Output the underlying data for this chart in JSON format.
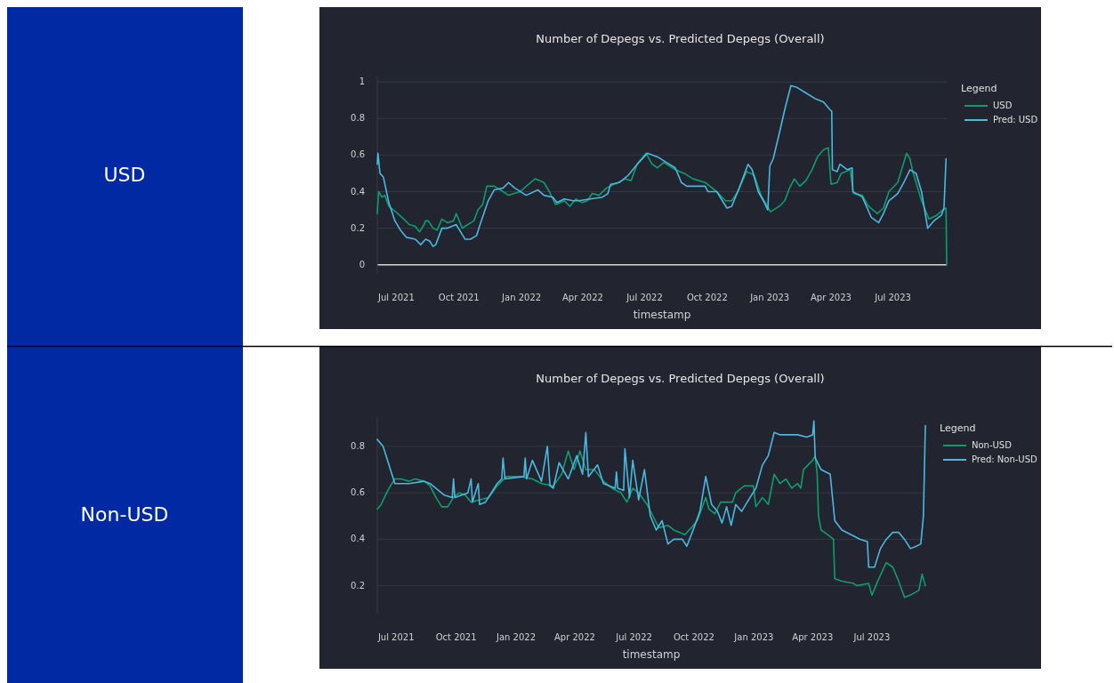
{
  "chart_data": [
    {
      "type": "line",
      "title": "Number of Depegs vs. Predicted Depegs (Overall)",
      "ylabel": "USD",
      "xlabel": "timestamp",
      "legend_title": "Legend",
      "legend": "top right",
      "grid": "y",
      "xlim": [
        "2021-06-03",
        "2023-09-18"
      ],
      "ylim": [
        -0.05,
        1.03
      ],
      "xticks": [
        {
          "value": "2021-07-01",
          "label": "Jul 2021"
        },
        {
          "value": "2021-10-01",
          "label": "Oct 2021"
        },
        {
          "value": "2022-01-01",
          "label": "Jan 2022"
        },
        {
          "value": "2022-04-01",
          "label": "Apr 2022"
        },
        {
          "value": "2022-07-01",
          "label": "Jul 2022"
        },
        {
          "value": "2022-10-01",
          "label": "Oct 2022"
        },
        {
          "value": "2023-01-01",
          "label": "Jan 2023"
        },
        {
          "value": "2023-04-01",
          "label": "Apr 2023"
        },
        {
          "value": "2023-07-01",
          "label": "Jul 2023"
        }
      ],
      "yticks": [
        0,
        0.2,
        0.4,
        0.6,
        0.8,
        1
      ],
      "series": [
        {
          "name": "USD",
          "color": "#0f9d6e",
          "x": [
            "2021-06-03",
            "2021-06-05",
            "2021-06-10",
            "2021-06-14",
            "2021-06-20",
            "2021-07-03",
            "2021-07-12",
            "2021-07-20",
            "2021-07-29",
            "2021-08-04",
            "2021-08-11",
            "2021-08-13",
            "2021-08-17",
            "2021-08-24",
            "2021-08-30",
            "2021-09-06",
            "2021-09-14",
            "2021-09-23",
            "2021-09-27",
            "2021-10-06",
            "2021-10-14",
            "2021-10-23",
            "2021-10-29",
            "2021-11-05",
            "2021-11-11",
            "2021-11-22",
            "2021-12-05",
            "2021-12-13",
            "2021-12-30",
            "2022-01-08",
            "2022-01-21",
            "2022-02-03",
            "2022-02-11",
            "2022-02-20",
            "2022-03-05",
            "2022-03-13",
            "2022-03-22",
            "2022-03-31",
            "2022-04-08",
            "2022-04-15",
            "2022-04-25",
            "2022-05-06",
            "2022-05-17",
            "2022-06-03",
            "2022-06-11",
            "2022-06-20",
            "2022-07-03",
            "2022-07-12",
            "2022-07-20",
            "2022-07-29",
            "2022-08-15",
            "2022-08-28",
            "2022-09-10",
            "2022-09-28",
            "2022-10-15",
            "2022-10-28",
            "2022-11-06",
            "2022-11-15",
            "2022-11-28",
            "2022-12-09",
            "2022-12-19",
            "2023-01-02",
            "2023-01-15",
            "2023-01-23",
            "2023-01-30",
            "2023-02-06",
            "2023-02-14",
            "2023-02-23",
            "2023-03-04",
            "2023-03-12",
            "2023-03-21",
            "2023-03-28",
            "2023-04-01",
            "2023-04-10",
            "2023-04-16",
            "2023-04-29",
            "2023-05-04",
            "2023-05-17",
            "2023-05-26",
            "2023-06-08",
            "2023-06-17",
            "2023-06-25",
            "2023-07-08",
            "2023-07-21",
            "2023-07-26",
            "2023-07-30",
            "2023-08-12",
            "2023-08-23",
            "2023-09-03",
            "2023-09-12",
            "2023-09-17",
            "2023-09-18"
          ],
          "values": [
            0.28,
            0.4,
            0.37,
            0.38,
            0.32,
            0.28,
            0.25,
            0.22,
            0.21,
            0.18,
            0.22,
            0.24,
            0.24,
            0.2,
            0.19,
            0.25,
            0.23,
            0.24,
            0.28,
            0.2,
            0.22,
            0.24,
            0.3,
            0.33,
            0.43,
            0.43,
            0.4,
            0.38,
            0.4,
            0.43,
            0.47,
            0.45,
            0.4,
            0.33,
            0.35,
            0.32,
            0.36,
            0.34,
            0.35,
            0.39,
            0.38,
            0.42,
            0.44,
            0.47,
            0.46,
            0.55,
            0.61,
            0.55,
            0.53,
            0.56,
            0.52,
            0.5,
            0.47,
            0.45,
            0.4,
            0.35,
            0.35,
            0.4,
            0.51,
            0.49,
            0.38,
            0.29,
            0.32,
            0.35,
            0.42,
            0.47,
            0.43,
            0.46,
            0.52,
            0.59,
            0.63,
            0.64,
            0.44,
            0.45,
            0.5,
            0.52,
            0.39,
            0.38,
            0.32,
            0.28,
            0.31,
            0.4,
            0.45,
            0.61,
            0.58,
            0.51,
            0.35,
            0.25,
            0.27,
            0.3,
            0.31,
            0
          ]
        },
        {
          "name": "Pred: USD",
          "color": "#4ab8e0",
          "x": [
            "2021-06-03",
            "2021-06-04",
            "2021-06-07",
            "2021-06-12",
            "2021-06-20",
            "2021-06-29",
            "2021-07-07",
            "2021-07-16",
            "2021-07-29",
            "2021-08-06",
            "2021-08-13",
            "2021-08-19",
            "2021-08-24",
            "2021-08-28",
            "2021-09-06",
            "2021-09-14",
            "2021-09-27",
            "2021-10-10",
            "2021-10-18",
            "2021-10-27",
            "2021-11-02",
            "2021-11-13",
            "2021-11-22",
            "2021-12-05",
            "2021-12-13",
            "2021-12-22",
            "2022-01-08",
            "2022-01-25",
            "2022-02-03",
            "2022-02-16",
            "2022-02-22",
            "2022-03-05",
            "2022-03-18",
            "2022-03-26",
            "2022-04-12",
            "2022-04-30",
            "2022-05-08",
            "2022-05-12",
            "2022-05-25",
            "2022-06-07",
            "2022-06-20",
            "2022-07-05",
            "2022-07-20",
            "2022-08-02",
            "2022-08-15",
            "2022-08-24",
            "2022-09-01",
            "2022-09-28",
            "2022-10-02",
            "2022-10-15",
            "2022-10-30",
            "2022-11-06",
            "2022-11-17",
            "2022-11-30",
            "2022-12-06",
            "2022-12-15",
            "2022-12-24",
            "2022-12-29",
            "2023-01-01",
            "2023-01-06",
            "2023-01-15",
            "2023-01-23",
            "2023-02-01",
            "2023-02-10",
            "2023-02-23",
            "2023-03-08",
            "2023-03-21",
            "2023-03-30",
            "2023-04-02",
            "2023-04-03",
            "2023-04-10",
            "2023-04-14",
            "2023-04-25",
            "2023-05-02",
            "2023-05-03",
            "2023-05-17",
            "2023-05-30",
            "2023-06-10",
            "2023-06-17",
            "2023-06-25",
            "2023-07-08",
            "2023-07-17",
            "2023-07-26",
            "2023-08-04",
            "2023-08-12",
            "2023-08-21",
            "2023-08-30",
            "2023-09-10",
            "2023-09-14",
            "2023-09-17"
          ],
          "values": [
            0.55,
            0.61,
            0.5,
            0.48,
            0.34,
            0.24,
            0.19,
            0.15,
            0.14,
            0.11,
            0.14,
            0.13,
            0.1,
            0.11,
            0.2,
            0.2,
            0.22,
            0.14,
            0.14,
            0.16,
            0.23,
            0.35,
            0.41,
            0.42,
            0.45,
            0.42,
            0.38,
            0.41,
            0.38,
            0.37,
            0.34,
            0.36,
            0.35,
            0.35,
            0.36,
            0.37,
            0.39,
            0.44,
            0.45,
            0.49,
            0.55,
            0.61,
            0.59,
            0.56,
            0.53,
            0.45,
            0.43,
            0.43,
            0.4,
            0.4,
            0.31,
            0.32,
            0.42,
            0.55,
            0.52,
            0.4,
            0.34,
            0.3,
            0.54,
            0.58,
            0.72,
            0.85,
            0.98,
            0.97,
            0.94,
            0.91,
            0.89,
            0.85,
            0.84,
            0.52,
            0.51,
            0.55,
            0.52,
            0.53,
            0.4,
            0.37,
            0.26,
            0.23,
            0.28,
            0.35,
            0.39,
            0.45,
            0.52,
            0.5,
            0.4,
            0.2,
            0.24,
            0.27,
            0.31,
            0.58
          ]
        }
      ]
    },
    {
      "type": "line",
      "title": "Number of Depegs vs. Predicted Depegs (Overall)",
      "ylabel": "Non-USD",
      "xlabel": "timestamp",
      "legend_title": "Legend",
      "legend": "top right",
      "grid": "y",
      "xlim": [
        "2021-06-02",
        "2023-09-21"
      ],
      "ylim": [
        0.08,
        0.93
      ],
      "xticks": [
        {
          "value": "2021-07-01",
          "label": "Jul 2021"
        },
        {
          "value": "2021-10-01",
          "label": "Oct 2021"
        },
        {
          "value": "2022-01-01",
          "label": "Jan 2022"
        },
        {
          "value": "2022-04-01",
          "label": "Apr 2022"
        },
        {
          "value": "2022-07-01",
          "label": "Jul 2022"
        },
        {
          "value": "2022-10-01",
          "label": "Oct 2022"
        },
        {
          "value": "2023-01-01",
          "label": "Jan 2023"
        },
        {
          "value": "2023-04-01",
          "label": "Apr 2023"
        },
        {
          "value": "2023-07-01",
          "label": "Jul 2023"
        }
      ],
      "yticks": [
        0.2,
        0.4,
        0.6,
        0.8
      ],
      "series": [
        {
          "name": "Non-USD",
          "color": "#0f9d6e",
          "x": [
            "2021-06-02",
            "2021-06-08",
            "2021-06-13",
            "2021-06-20",
            "2021-06-29",
            "2021-07-08",
            "2021-07-21",
            "2021-07-30",
            "2021-08-13",
            "2021-08-22",
            "2021-08-31",
            "2021-09-09",
            "2021-09-18",
            "2021-09-27",
            "2021-10-06",
            "2021-10-15",
            "2021-10-24",
            "2021-11-06",
            "2021-11-20",
            "2021-12-03",
            "2021-12-17",
            "2022-01-08",
            "2022-01-26",
            "2022-02-09",
            "2022-02-27",
            "2022-03-12",
            "2022-03-22",
            "2022-03-31",
            "2022-04-09",
            "2022-04-18",
            "2022-05-01",
            "2022-05-15",
            "2022-05-28",
            "2022-06-11",
            "2022-06-20",
            "2022-06-29",
            "2022-07-08",
            "2022-07-21",
            "2022-07-30",
            "2022-08-08",
            "2022-08-22",
            "2022-08-31",
            "2022-09-17",
            "2022-09-27",
            "2022-10-06",
            "2022-10-19",
            "2022-10-24",
            "2022-11-02",
            "2022-11-11",
            "2022-11-29",
            "2022-12-04",
            "2022-12-17",
            "2022-12-31",
            "2023-01-04",
            "2023-01-14",
            "2023-01-23",
            "2023-02-01",
            "2023-02-10",
            "2023-02-19",
            "2023-02-28",
            "2023-03-09",
            "2023-03-14",
            "2023-03-18",
            "2023-04-01",
            "2023-04-05",
            "2023-04-08",
            "2023-04-10",
            "2023-04-14",
            "2023-04-24",
            "2023-05-03",
            "2023-05-05",
            "2023-05-16",
            "2023-06-03",
            "2023-06-08",
            "2023-06-26",
            "2023-07-01",
            "2023-07-10",
            "2023-07-23",
            "2023-08-02",
            "2023-08-11",
            "2023-08-20",
            "2023-08-29",
            "2023-09-11",
            "2023-09-16",
            "2023-09-21"
          ],
          "values": [
            0.53,
            0.55,
            0.58,
            0.62,
            0.66,
            0.66,
            0.65,
            0.66,
            0.65,
            0.63,
            0.58,
            0.54,
            0.54,
            0.58,
            0.6,
            0.59,
            0.56,
            0.57,
            0.58,
            0.63,
            0.67,
            0.67,
            0.66,
            0.64,
            0.63,
            0.68,
            0.78,
            0.7,
            0.78,
            0.7,
            0.7,
            0.65,
            0.62,
            0.6,
            0.56,
            0.62,
            0.6,
            0.55,
            0.5,
            0.45,
            0.46,
            0.44,
            0.42,
            0.45,
            0.48,
            0.58,
            0.53,
            0.51,
            0.56,
            0.56,
            0.6,
            0.63,
            0.63,
            0.54,
            0.58,
            0.55,
            0.68,
            0.64,
            0.66,
            0.62,
            0.64,
            0.62,
            0.7,
            0.74,
            0.76,
            0.68,
            0.5,
            0.44,
            0.42,
            0.4,
            0.23,
            0.22,
            0.21,
            0.2,
            0.21,
            0.16,
            0.22,
            0.3,
            0.28,
            0.22,
            0.15,
            0.16,
            0.18,
            0.25,
            0.2
          ]
        },
        {
          "name": "Pred: Non-USD",
          "color": "#4ab8e0",
          "x": [
            "2021-06-02",
            "2021-06-11",
            "2021-06-29",
            "2021-07-21",
            "2021-08-13",
            "2021-08-22",
            "2021-09-13",
            "2021-09-25",
            "2021-09-27",
            "2021-09-29",
            "2021-10-19",
            "2021-10-24",
            "2021-10-26",
            "2021-11-04",
            "2021-11-06",
            "2021-11-15",
            "2021-12-03",
            "2021-12-10",
            "2021-12-12",
            "2021-12-15",
            "2022-01-13",
            "2022-01-15",
            "2022-01-17",
            "2022-01-26",
            "2022-02-09",
            "2022-02-18",
            "2022-02-22",
            "2022-02-27",
            "2022-03-08",
            "2022-03-22",
            "2022-04-04",
            "2022-04-13",
            "2022-04-18",
            "2022-04-22",
            "2022-05-06",
            "2022-05-15",
            "2022-06-02",
            "2022-06-04",
            "2022-06-06",
            "2022-06-15",
            "2022-06-17",
            "2022-06-24",
            "2022-06-29",
            "2022-07-08",
            "2022-07-17",
            "2022-07-26",
            "2022-08-04",
            "2022-08-13",
            "2022-08-22",
            "2022-08-31",
            "2022-09-13",
            "2022-09-20",
            "2022-10-01",
            "2022-10-10",
            "2022-10-19",
            "2022-10-28",
            "2022-11-06",
            "2022-11-13",
            "2022-11-20",
            "2022-11-27",
            "2022-12-04",
            "2022-12-13",
            "2022-12-26",
            "2023-01-04",
            "2023-01-14",
            "2023-01-23",
            "2023-02-01",
            "2023-02-10",
            "2023-02-19",
            "2023-03-09",
            "2023-03-23",
            "2023-04-01",
            "2023-04-03",
            "2023-04-05",
            "2023-04-14",
            "2023-04-28",
            "2023-05-05",
            "2023-05-16",
            "2023-05-30",
            "2023-06-13",
            "2023-06-24",
            "2023-06-26",
            "2023-07-05",
            "2023-07-14",
            "2023-07-23",
            "2023-08-02",
            "2023-08-11",
            "2023-08-20",
            "2023-08-29",
            "2023-09-07",
            "2023-09-14",
            "2023-09-18",
            "2023-09-21"
          ],
          "values": [
            0.83,
            0.8,
            0.64,
            0.64,
            0.65,
            0.64,
            0.59,
            0.58,
            0.66,
            0.58,
            0.6,
            0.66,
            0.56,
            0.64,
            0.55,
            0.56,
            0.64,
            0.66,
            0.75,
            0.66,
            0.67,
            0.75,
            0.66,
            0.74,
            0.65,
            0.8,
            0.63,
            0.62,
            0.73,
            0.66,
            0.76,
            0.68,
            0.86,
            0.67,
            0.72,
            0.64,
            0.62,
            0.69,
            0.62,
            0.61,
            0.79,
            0.58,
            0.74,
            0.57,
            0.7,
            0.5,
            0.44,
            0.48,
            0.38,
            0.4,
            0.4,
            0.37,
            0.45,
            0.52,
            0.67,
            0.55,
            0.52,
            0.47,
            0.54,
            0.46,
            0.55,
            0.52,
            0.58,
            0.62,
            0.72,
            0.76,
            0.86,
            0.85,
            0.85,
            0.85,
            0.84,
            0.85,
            0.91,
            0.75,
            0.7,
            0.68,
            0.48,
            0.44,
            0.42,
            0.4,
            0.39,
            0.28,
            0.28,
            0.36,
            0.4,
            0.43,
            0.43,
            0.4,
            0.36,
            0.37,
            0.38,
            0.5,
            0.89
          ]
        }
      ]
    }
  ]
}
